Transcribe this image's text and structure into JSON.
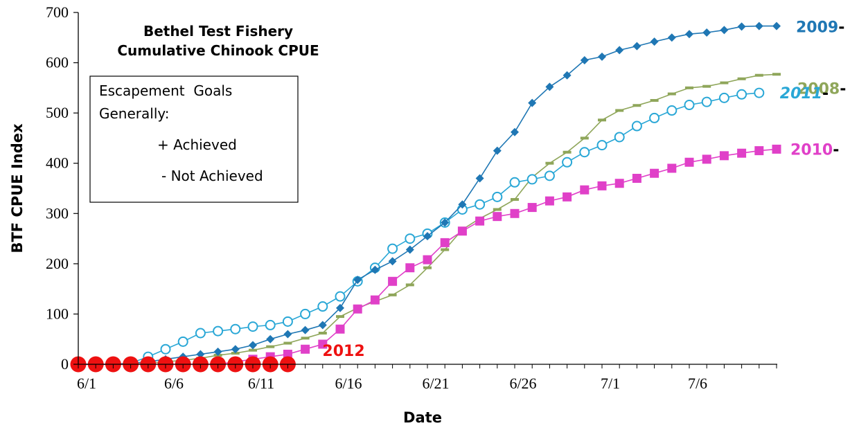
{
  "chart_data": {
    "type": "line",
    "title": [
      "Bethel Test Fishery",
      "Cumulative Chinook CPUE"
    ],
    "xlabel": "Date",
    "ylabel": "BTF CPUE Index",
    "ylim": [
      0,
      700
    ],
    "yticks": [
      0,
      100,
      200,
      300,
      400,
      500,
      600,
      700
    ],
    "xticks": [
      {
        "day": 1,
        "label": "6/1"
      },
      {
        "day": 6,
        "label": "6/6"
      },
      {
        "day": 11,
        "label": "6/11"
      },
      {
        "day": 16,
        "label": "6/16"
      },
      {
        "day": 21,
        "label": "6/21"
      },
      {
        "day": 26,
        "label": "6/26"
      },
      {
        "day": 31,
        "label": "7/1"
      },
      {
        "day": 36,
        "label": "7/6"
      }
    ],
    "legend_box": {
      "lines": [
        "Escapement  Goals",
        "Generally:",
        "+ Achieved",
        "- Not Achieved"
      ]
    },
    "series": [
      {
        "name": "2009",
        "suffix": "-",
        "color": "#1f77b4",
        "marker": "diamond",
        "italic": false,
        "start_day": 1,
        "values": [
          0,
          0,
          0,
          2,
          5,
          10,
          15,
          20,
          25,
          30,
          38,
          50,
          60,
          68,
          78,
          112,
          168,
          188,
          205,
          228,
          255,
          282,
          318,
          370,
          425,
          462,
          520,
          552,
          575,
          605,
          612,
          625,
          633,
          642,
          650,
          657,
          660,
          665,
          672,
          673,
          673
        ]
      },
      {
        "name": "2008",
        "suffix": "-",
        "color": "#8fa65a",
        "marker": "dash",
        "italic": false,
        "start_day": 1,
        "values": [
          0,
          0,
          0,
          0,
          2,
          5,
          8,
          12,
          18,
          22,
          28,
          35,
          42,
          52,
          62,
          95,
          112,
          125,
          138,
          158,
          192,
          228,
          268,
          290,
          308,
          328,
          372,
          400,
          422,
          450,
          486,
          505,
          515,
          525,
          538,
          550,
          553,
          560,
          568,
          575,
          577
        ]
      },
      {
        "name": "2011",
        "suffix": "-",
        "color": "#29a7d6",
        "marker": "circle",
        "italic": true,
        "start_day": 1,
        "values": [
          0,
          0,
          0,
          2,
          15,
          30,
          45,
          62,
          66,
          70,
          75,
          78,
          85,
          100,
          115,
          135,
          165,
          192,
          230,
          250,
          260,
          282,
          308,
          318,
          333,
          362,
          368,
          375,
          402,
          422,
          436,
          452,
          474,
          490,
          505,
          516,
          522,
          530,
          537,
          540
        ]
      },
      {
        "name": "2010",
        "suffix": "-",
        "color": "#e040c8",
        "marker": "square",
        "italic": false,
        "start_day": 1,
        "values": [
          0,
          0,
          0,
          0,
          0,
          0,
          0,
          0,
          0,
          5,
          10,
          15,
          20,
          30,
          40,
          70,
          110,
          128,
          165,
          192,
          208,
          242,
          265,
          285,
          294,
          300,
          312,
          325,
          333,
          347,
          355,
          360,
          370,
          380,
          390,
          402,
          408,
          415,
          420,
          425,
          428
        ]
      },
      {
        "name": "2012",
        "suffix": "",
        "color": "#ee1111",
        "marker": "bigcircle",
        "italic": false,
        "start_day": 1,
        "values": [
          0,
          0,
          0,
          0,
          0,
          0,
          0,
          0,
          0,
          0,
          0,
          0,
          0
        ]
      }
    ]
  }
}
